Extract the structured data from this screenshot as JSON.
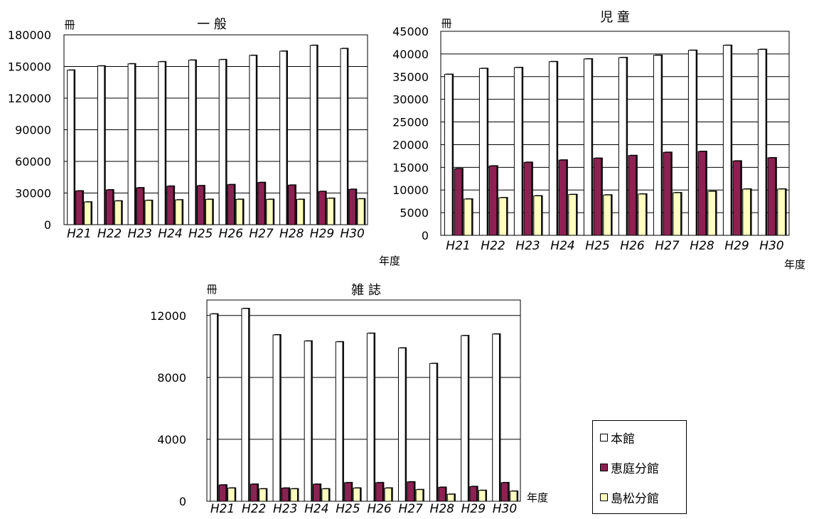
{
  "chart_data": [
    {
      "type": "bar",
      "title": "一 般",
      "unit_label": "冊",
      "xlabel": "年度",
      "categories": [
        "H21",
        "H22",
        "H23",
        "H24",
        "H25",
        "H26",
        "H27",
        "H28",
        "H29",
        "H30"
      ],
      "ylim": [
        0,
        180000
      ],
      "yticks": [
        0,
        30000,
        60000,
        90000,
        120000,
        150000,
        180000
      ],
      "grid": true,
      "series": [
        {
          "name": "本館",
          "values": [
            146500,
            150500,
            152500,
            154500,
            156000,
            156500,
            160500,
            164500,
            170000,
            167000
          ]
        },
        {
          "name": "恵庭分館",
          "values": [
            32000,
            33000,
            35000,
            36500,
            37000,
            38000,
            40000,
            37500,
            31500,
            33500
          ]
        },
        {
          "name": "島松分館",
          "values": [
            21500,
            22500,
            23000,
            23500,
            24000,
            24000,
            24000,
            24000,
            25000,
            24500
          ]
        }
      ]
    },
    {
      "type": "bar",
      "title": "児 童",
      "unit_label": "冊",
      "xlabel": "年度",
      "categories": [
        "H21",
        "H22",
        "H23",
        "H24",
        "H25",
        "H26",
        "H27",
        "H28",
        "H29",
        "H30"
      ],
      "ylim": [
        0,
        45000
      ],
      "yticks": [
        0,
        5000,
        10000,
        15000,
        20000,
        25000,
        30000,
        35000,
        40000,
        45000
      ],
      "grid": true,
      "series": [
        {
          "name": "本館",
          "values": [
            35500,
            36800,
            37000,
            38300,
            38900,
            39200,
            39700,
            40800,
            41900,
            41000
          ]
        },
        {
          "name": "恵庭分館",
          "values": [
            14700,
            15300,
            16100,
            16600,
            17000,
            17600,
            18300,
            18500,
            16400,
            17100
          ]
        },
        {
          "name": "島松分館",
          "values": [
            8000,
            8300,
            8700,
            9000,
            8900,
            9100,
            9400,
            9700,
            10200,
            10200
          ]
        }
      ]
    },
    {
      "type": "bar",
      "title": "雑 誌",
      "unit_label": "冊",
      "xlabel": "年度",
      "categories": [
        "H21",
        "H22",
        "H23",
        "H24",
        "H25",
        "H26",
        "H27",
        "H28",
        "H29",
        "H30"
      ],
      "ylim": [
        0,
        13000
      ],
      "yticks": [
        0,
        4000,
        8000,
        12000
      ],
      "grid": true,
      "series": [
        {
          "name": "本館",
          "values": [
            12100,
            12450,
            10750,
            10350,
            10300,
            10850,
            9900,
            8900,
            10700,
            10800
          ]
        },
        {
          "name": "恵庭分館",
          "values": [
            1050,
            1100,
            850,
            1100,
            1200,
            1200,
            1250,
            900,
            950,
            1200
          ]
        },
        {
          "name": "島松分館",
          "values": [
            850,
            800,
            800,
            800,
            850,
            850,
            750,
            450,
            700,
            650
          ]
        }
      ]
    }
  ],
  "legend": {
    "placement": "bottom-right",
    "items": [
      {
        "label": "本館",
        "color": "#ffffff"
      },
      {
        "label": "恵庭分館",
        "color": "#8b2252"
      },
      {
        "label": "島松分館",
        "color": "#ffffc0"
      }
    ]
  },
  "colors": {
    "series": [
      "#ffffff",
      "#8b2252",
      "#ffffc0"
    ],
    "shadow": "#111111",
    "grid": "#000000"
  }
}
